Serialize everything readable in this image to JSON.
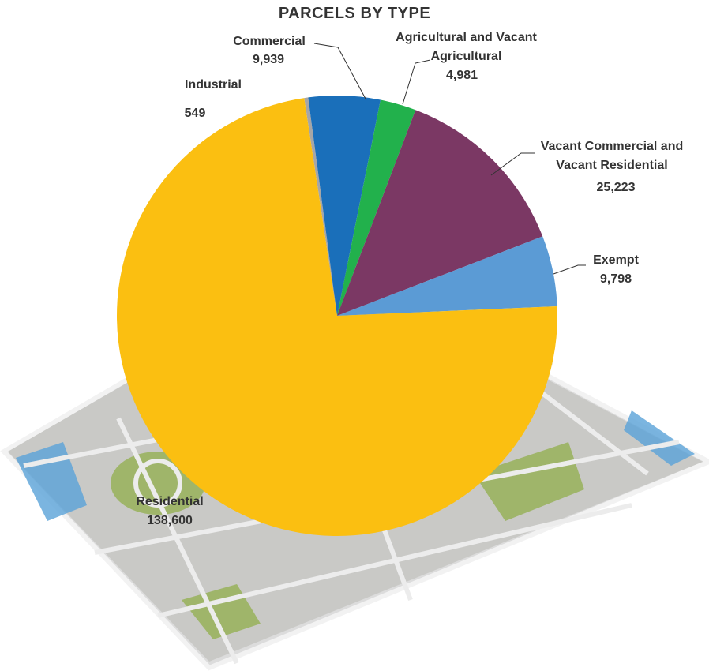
{
  "chart_data": {
    "type": "pie",
    "title": "PARCELS BY TYPE",
    "categories": [
      "Industrial",
      "Commercial",
      "Agricultural and Vacant Agricultural",
      "Vacant Commercial and Vacant Residential",
      "Exempt",
      "Residential"
    ],
    "values": [
      549,
      9939,
      4981,
      25223,
      9798,
      138600
    ],
    "value_labels": [
      "549",
      "9,939",
      "4,981",
      "25,223",
      "9,798",
      "138,600"
    ],
    "colors": [
      "#a6a6a6",
      "#1a6fba",
      "#22b14c",
      "#7b3864",
      "#5b9bd5",
      "#fbbf11"
    ]
  }
}
